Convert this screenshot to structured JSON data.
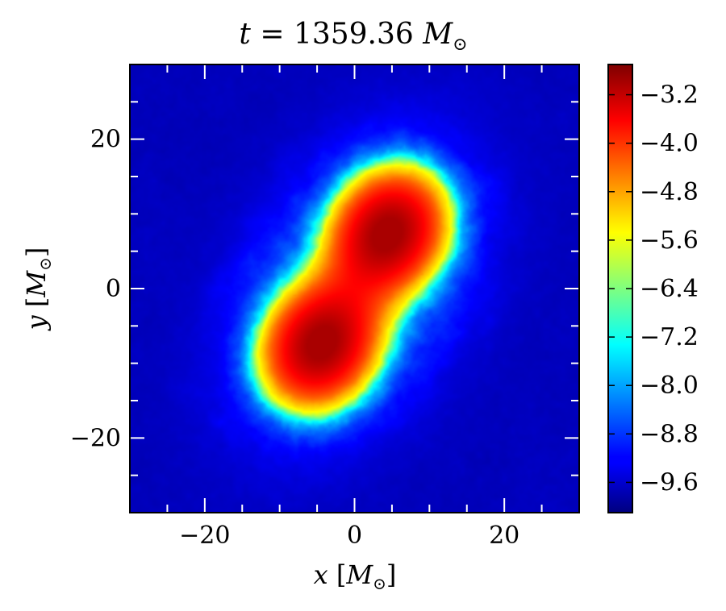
{
  "chart_data": {
    "type": "heatmap",
    "title": {
      "var": "t",
      "eq": " = 1359.36 ",
      "unit": "M",
      "sub": "⊙"
    },
    "xlabel": {
      "var": "x",
      "open": " [",
      "unit": "M",
      "sub": "⊙",
      "close": "]"
    },
    "ylabel": {
      "var": "y",
      "open": " [",
      "unit": "M",
      "sub": "⊙",
      "close": "]"
    },
    "xlim": [
      -30,
      30
    ],
    "ylim": [
      -30,
      30
    ],
    "xticks": [
      -20,
      0,
      20
    ],
    "yticks": [
      -20,
      0,
      20
    ],
    "xtick_labels": [
      "−20",
      "0",
      "20"
    ],
    "ytick_labels": [
      "−20",
      "0",
      "20"
    ],
    "minor_tick_step": 5,
    "colormap": "jet",
    "colorbar": {
      "range": [
        -10.1,
        -2.7
      ],
      "ticks": [
        -3.2,
        -4.0,
        -4.8,
        -5.6,
        -6.4,
        -7.2,
        -8.0,
        -8.8,
        -9.6
      ],
      "tick_labels": [
        "−3.2",
        "−4.0",
        "−4.8",
        "−5.6",
        "−6.4",
        "−7.2",
        "−8.0",
        "−8.8",
        "−9.6"
      ]
    },
    "background_value": -9.9,
    "cores": [
      {
        "x": 4.5,
        "y": 7.5,
        "peak": -2.9
      },
      {
        "x": -4.5,
        "y": -7.5,
        "peak": -2.9
      }
    ],
    "bridge": {
      "from": [
        -8,
        -1
      ],
      "to": [
        9,
        2
      ]
    },
    "grid": false,
    "legend": "none"
  }
}
